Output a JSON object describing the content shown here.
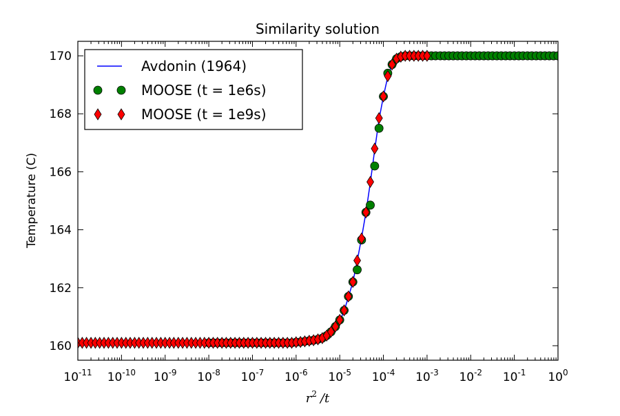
{
  "chart_data": {
    "type": "line",
    "title": "Similarity solution",
    "xlabel": "r^2 /t",
    "xlabel_parts": {
      "r": "r",
      "sup": "2",
      "rest": "/t"
    },
    "ylabel": "Temperature (C)",
    "xscale": "log",
    "xlim": [
      1e-11,
      1
    ],
    "ylim": [
      159.5,
      170.5
    ],
    "grid": false,
    "legend_position": "top-left",
    "xticks": [
      {
        "base": "10",
        "exp": "-11",
        "value": 1e-11
      },
      {
        "base": "10",
        "exp": "-10",
        "value": 1e-10
      },
      {
        "base": "10",
        "exp": "-9",
        "value": 1e-09
      },
      {
        "base": "10",
        "exp": "-8",
        "value": 1e-08
      },
      {
        "base": "10",
        "exp": "-7",
        "value": 1e-07
      },
      {
        "base": "10",
        "exp": "-6",
        "value": 1e-06
      },
      {
        "base": "10",
        "exp": "-5",
        "value": 1e-05
      },
      {
        "base": "10",
        "exp": "-4",
        "value": 0.0001
      },
      {
        "base": "10",
        "exp": "-3",
        "value": 0.001
      },
      {
        "base": "10",
        "exp": "-2",
        "value": 0.01
      },
      {
        "base": "10",
        "exp": "-1",
        "value": 0.1
      },
      {
        "base": "10",
        "exp": "0",
        "value": 1
      }
    ],
    "yticks": [
      {
        "label": "160",
        "value": 160
      },
      {
        "label": "162",
        "value": 162
      },
      {
        "label": "164",
        "value": 164
      },
      {
        "label": "166",
        "value": 166
      },
      {
        "label": "168",
        "value": 168
      },
      {
        "label": "170",
        "value": 170
      }
    ],
    "series": [
      {
        "name": "Avdonin (1964)",
        "kind": "line",
        "color": "#0000ff",
        "x": [
          1e-11,
          1e-06,
          1.26e-06,
          1.58e-06,
          2e-06,
          2.51e-06,
          3.16e-06,
          3.98e-06,
          5.01e-06,
          6.31e-06,
          7.94e-06,
          1e-05,
          1.26e-05,
          1.58e-05,
          2e-05,
          2.51e-05,
          3.16e-05,
          3.98e-05,
          5.01e-05,
          6.31e-05,
          7.94e-05,
          0.0001,
          0.000126,
          0.000158,
          0.0002,
          0.000251,
          0.000316,
          0.000398,
          0.000501,
          0.000631,
          0.000794,
          0.001,
          1
        ],
        "y": [
          160.1,
          160.1,
          160.12,
          160.14,
          160.16,
          160.18,
          160.21,
          160.25,
          160.33,
          160.45,
          160.63,
          160.86,
          161.2,
          161.68,
          162.2,
          162.92,
          163.72,
          164.6,
          165.62,
          166.75,
          167.8,
          168.6,
          169.28,
          169.7,
          169.9,
          169.97,
          170,
          170,
          170,
          170,
          170,
          170,
          170
        ]
      },
      {
        "name": "MOOSE (t = 1e6s)",
        "kind": "marker",
        "marker": "circle",
        "color": "#008000",
        "x": [
          1e-08,
          1.26e-08,
          1.58e-08,
          2e-08,
          2.51e-08,
          3.16e-08,
          3.98e-08,
          5.01e-08,
          6.31e-08,
          7.94e-08,
          1e-07,
          1.26e-07,
          1.58e-07,
          2e-07,
          2.51e-07,
          3.16e-07,
          3.98e-07,
          5.01e-07,
          6.31e-07,
          7.94e-07,
          1e-06,
          1.26e-06,
          1.58e-06,
          2e-06,
          2.51e-06,
          3.16e-06,
          3.98e-06,
          5.01e-06,
          6.31e-06,
          7.94e-06,
          1e-05,
          1.26e-05,
          1.58e-05,
          2e-05,
          2.51e-05,
          3.16e-05,
          3.98e-05,
          5.01e-05,
          6.31e-05,
          7.94e-05,
          0.0001,
          0.000126,
          0.000158,
          0.0002,
          0.000251,
          0.000316,
          0.000398,
          0.000501,
          0.000631,
          0.000794,
          0.001,
          0.00126,
          0.00158,
          0.002,
          0.00251,
          0.00316,
          0.00398,
          0.00501,
          0.00631,
          0.00794,
          0.01,
          0.0126,
          0.0158,
          0.02,
          0.0251,
          0.0316,
          0.0398,
          0.0501,
          0.0631,
          0.0794,
          0.1,
          0.126,
          0.158,
          0.2,
          0.251,
          0.316,
          0.398,
          0.501,
          0.631,
          0.794,
          1
        ],
        "y": [
          160.1,
          160.1,
          160.1,
          160.1,
          160.1,
          160.1,
          160.1,
          160.1,
          160.1,
          160.1,
          160.1,
          160.1,
          160.1,
          160.1,
          160.1,
          160.1,
          160.1,
          160.1,
          160.1,
          160.1,
          160.12,
          160.13,
          160.15,
          160.17,
          160.19,
          160.22,
          160.26,
          160.35,
          160.48,
          160.66,
          160.89,
          161.22,
          161.7,
          162.2,
          162.62,
          163.65,
          164.6,
          164.85,
          166.2,
          167.5,
          168.6,
          169.4,
          169.7,
          169.9,
          169.97,
          170,
          170,
          170,
          170,
          170,
          170,
          170,
          170,
          170,
          170,
          170,
          170,
          170,
          170,
          170,
          170,
          170,
          170,
          170,
          170,
          170,
          170,
          170,
          170,
          170,
          170,
          170,
          170,
          170,
          170,
          170,
          170,
          170,
          170,
          170,
          170
        ]
      },
      {
        "name": "MOOSE (t = 1e9s)",
        "kind": "marker",
        "marker": "diamond",
        "color": "#ff0000",
        "x": [
          1e-11,
          1.26e-11,
          1.58e-11,
          2e-11,
          2.51e-11,
          3.16e-11,
          3.98e-11,
          5.01e-11,
          6.31e-11,
          7.94e-11,
          1e-10,
          1.26e-10,
          1.58e-10,
          2e-10,
          2.51e-10,
          3.16e-10,
          3.98e-10,
          5.01e-10,
          6.31e-10,
          7.94e-10,
          1e-09,
          1.26e-09,
          1.58e-09,
          2e-09,
          2.51e-09,
          3.16e-09,
          3.98e-09,
          5.01e-09,
          6.31e-09,
          7.94e-09,
          1e-08,
          1.26e-08,
          1.58e-08,
          2e-08,
          2.51e-08,
          3.16e-08,
          3.98e-08,
          5.01e-08,
          6.31e-08,
          7.94e-08,
          1e-07,
          1.26e-07,
          1.58e-07,
          2e-07,
          2.51e-07,
          3.16e-07,
          3.98e-07,
          5.01e-07,
          6.31e-07,
          7.94e-07,
          1e-06,
          1.26e-06,
          1.58e-06,
          2e-06,
          2.51e-06,
          3.16e-06,
          3.98e-06,
          5.01e-06,
          6.31e-06,
          7.94e-06,
          1e-05,
          1.26e-05,
          1.58e-05,
          2e-05,
          2.51e-05,
          3.16e-05,
          3.98e-05,
          5.01e-05,
          6.31e-05,
          7.94e-05,
          0.0001,
          0.000126,
          0.000158,
          0.0002,
          0.000251,
          0.000316,
          0.000398,
          0.000501,
          0.000631,
          0.000794,
          0.001
        ],
        "y": [
          160.1,
          160.1,
          160.1,
          160.1,
          160.1,
          160.1,
          160.1,
          160.1,
          160.1,
          160.1,
          160.1,
          160.1,
          160.1,
          160.1,
          160.1,
          160.1,
          160.1,
          160.1,
          160.1,
          160.1,
          160.1,
          160.1,
          160.1,
          160.1,
          160.1,
          160.1,
          160.1,
          160.1,
          160.1,
          160.1,
          160.1,
          160.1,
          160.1,
          160.1,
          160.1,
          160.1,
          160.1,
          160.1,
          160.1,
          160.1,
          160.1,
          160.1,
          160.1,
          160.1,
          160.1,
          160.1,
          160.1,
          160.1,
          160.1,
          160.1,
          160.12,
          160.13,
          160.15,
          160.17,
          160.19,
          160.22,
          160.26,
          160.35,
          160.48,
          160.66,
          160.89,
          161.22,
          161.7,
          162.2,
          162.94,
          163.7,
          164.6,
          165.65,
          166.8,
          167.85,
          168.6,
          169.3,
          169.7,
          169.9,
          169.97,
          170,
          170,
          170,
          170,
          170,
          170
        ]
      }
    ]
  }
}
